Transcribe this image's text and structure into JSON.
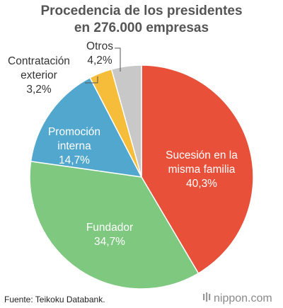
{
  "chart_data": {
    "type": "pie",
    "title_lines": [
      "Procedencia de los presidentes",
      "en 276.000 empresas"
    ],
    "slices": [
      {
        "lines": [
          "Sucesión en la",
          "misma familia"
        ],
        "value_label": "40,3%",
        "value": 40.3,
        "color": "#e8503a"
      },
      {
        "lines": [
          "Fundador"
        ],
        "value_label": "34,7%",
        "value": 34.7,
        "color": "#7ec87f"
      },
      {
        "lines": [
          "Promoción",
          "interna"
        ],
        "value_label": "14,7%",
        "value": 14.7,
        "color": "#52a7cf"
      },
      {
        "lines": [
          "Contratación",
          "exterior"
        ],
        "value_label": "3,2%",
        "value": 3.2,
        "color": "#f6bd3b"
      },
      {
        "lines": [
          "Otros"
        ],
        "value_label": "4,2%",
        "value": 4.2,
        "color": "#c8c8c8"
      }
    ]
  },
  "footer": {
    "source": "Fuente: Teikoku Databank.",
    "logo": "nippon.com"
  }
}
